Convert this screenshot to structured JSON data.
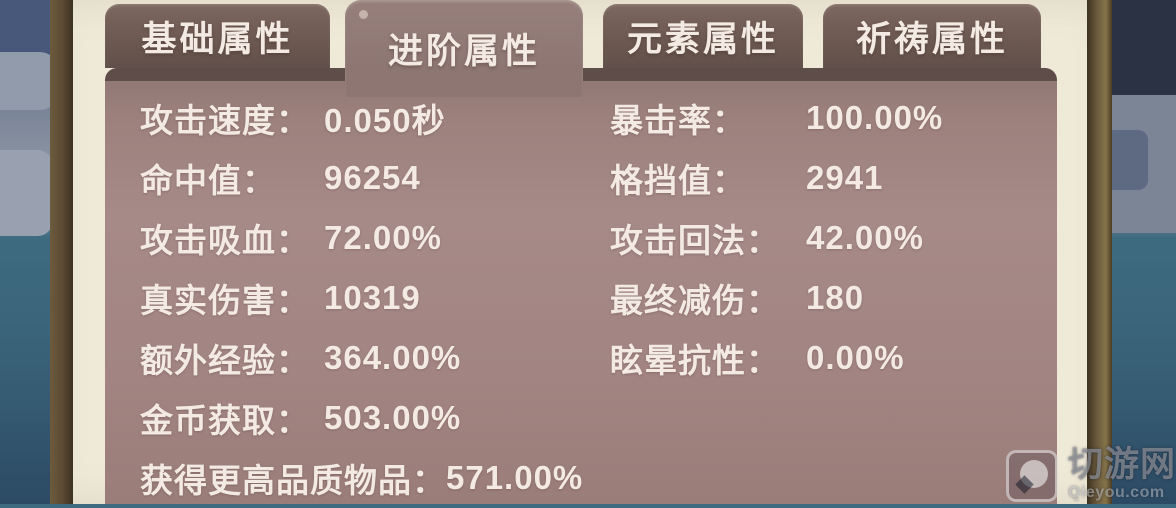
{
  "tabs": [
    {
      "label": "基础属性",
      "selected": false
    },
    {
      "label": "进阶属性",
      "selected": true
    },
    {
      "label": "元素属性",
      "selected": false
    },
    {
      "label": "祈祷属性",
      "selected": false
    }
  ],
  "stats": {
    "left": [
      {
        "label": "攻击速度：",
        "value": "0.050秒"
      },
      {
        "label": "命中值：",
        "value": "96254"
      },
      {
        "label": "攻击吸血：",
        "value": "72.00%"
      },
      {
        "label": "真实伤害：",
        "value": "10319"
      },
      {
        "label": "额外经验：",
        "value": "364.00%"
      },
      {
        "label": "金币获取：",
        "value": "503.00%"
      },
      {
        "label": "获得更高品质物品：",
        "value": "571.00%"
      }
    ],
    "right": [
      {
        "label": "暴击率：",
        "value": "100.00%"
      },
      {
        "label": "格挡值：",
        "value": "2941"
      },
      {
        "label": "攻击回法：",
        "value": "42.00%"
      },
      {
        "label": "最终减伤：",
        "value": "180"
      },
      {
        "label": "眩晕抗性：",
        "value": "0.00%"
      }
    ]
  },
  "watermark": {
    "site_name": "切游网",
    "site_url": "Qieyou.com"
  },
  "colors": {
    "panel_body": "#a68a88",
    "tab_unselected": "#6b5850",
    "tab_selected": "#8e7773",
    "parchment": "#efe9d8",
    "wood_border": "#5a4a33",
    "stat_text": "#f2eae3"
  }
}
